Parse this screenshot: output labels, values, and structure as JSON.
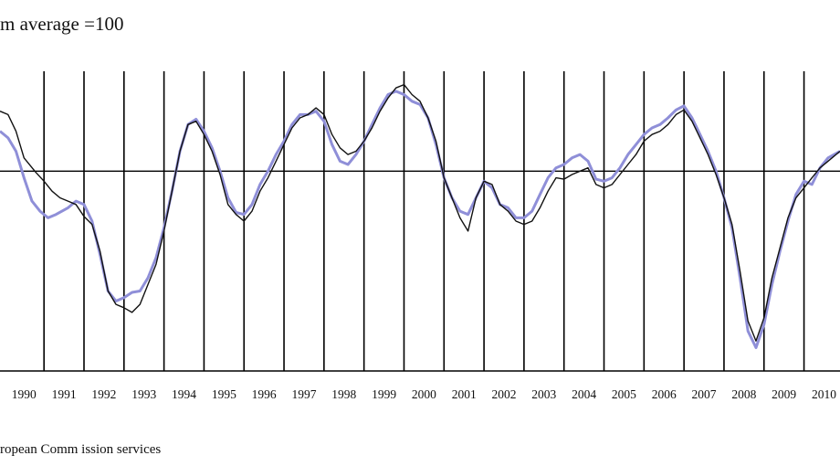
{
  "subtitle": "m average =100",
  "source": "ropean  Comm ission services",
  "colors": {
    "series_black": "#111111",
    "series_blue": "#8f8fd8",
    "axis": "#000000"
  },
  "chart_data": {
    "type": "line",
    "subtitle": "m average =100",
    "xlabel": "",
    "ylabel": "",
    "x_tick_labels": [
      "1990",
      "1991",
      "1992",
      "1993",
      "1994",
      "1995",
      "1996",
      "1997",
      "1998",
      "1999",
      "2000",
      "2001",
      "2002",
      "2003",
      "2004",
      "2005",
      "2006",
      "2007",
      "2008",
      "2009",
      "2010"
    ],
    "xlim": [
      1989.9,
      2010.9
    ],
    "ylim": [
      70,
      115
    ],
    "reference_line": 100,
    "grid": {
      "vertical_year_lines": true,
      "horizontal": false
    },
    "legend": "none",
    "series": [
      {
        "color": "#111111",
        "points": [
          [
            1989.9,
            109
          ],
          [
            1990.1,
            108.5
          ],
          [
            1990.3,
            106
          ],
          [
            1990.5,
            102
          ],
          [
            1990.8,
            99.8
          ],
          [
            1991.0,
            98.5
          ],
          [
            1991.2,
            97
          ],
          [
            1991.4,
            96
          ],
          [
            1991.6,
            95.5
          ],
          [
            1991.8,
            95
          ],
          [
            1992.0,
            93.2
          ],
          [
            1992.2,
            92
          ],
          [
            1992.4,
            88
          ],
          [
            1992.6,
            82
          ],
          [
            1992.8,
            80
          ],
          [
            1993.0,
            79.5
          ],
          [
            1993.2,
            78.8
          ],
          [
            1993.4,
            80
          ],
          [
            1993.6,
            83
          ],
          [
            1993.8,
            86
          ],
          [
            1994.0,
            91
          ],
          [
            1994.2,
            97
          ],
          [
            1994.4,
            103
          ],
          [
            1994.6,
            107
          ],
          [
            1994.8,
            107.5
          ],
          [
            1995.0,
            105.5
          ],
          [
            1995.2,
            103
          ],
          [
            1995.4,
            99.5
          ],
          [
            1995.6,
            95
          ],
          [
            1995.8,
            93.5
          ],
          [
            1996.0,
            92.5
          ],
          [
            1996.2,
            94
          ],
          [
            1996.4,
            97
          ],
          [
            1996.6,
            99
          ],
          [
            1996.8,
            101.5
          ],
          [
            1997.0,
            104
          ],
          [
            1997.2,
            106.5
          ],
          [
            1997.4,
            108
          ],
          [
            1997.6,
            108.5
          ],
          [
            1997.8,
            109.5
          ],
          [
            1998.0,
            108.5
          ],
          [
            1998.2,
            105.5
          ],
          [
            1998.4,
            103.5
          ],
          [
            1998.6,
            102.5
          ],
          [
            1998.8,
            103
          ],
          [
            1999.0,
            104.5
          ],
          [
            1999.2,
            106.5
          ],
          [
            1999.4,
            109
          ],
          [
            1999.6,
            111
          ],
          [
            1999.8,
            112.5
          ],
          [
            2000.0,
            113
          ],
          [
            2000.2,
            111.5
          ],
          [
            2000.4,
            110.5
          ],
          [
            2000.6,
            108
          ],
          [
            2000.8,
            104.5
          ],
          [
            2001.0,
            99
          ],
          [
            2001.2,
            96
          ],
          [
            2001.4,
            93
          ],
          [
            2001.6,
            91
          ],
          [
            2001.8,
            96
          ],
          [
            2002.0,
            98.5
          ],
          [
            2002.2,
            98
          ],
          [
            2002.4,
            95
          ],
          [
            2002.6,
            94
          ],
          [
            2002.8,
            92.5
          ],
          [
            2003.0,
            92
          ],
          [
            2003.2,
            92.5
          ],
          [
            2003.4,
            94.5
          ],
          [
            2003.6,
            97
          ],
          [
            2003.8,
            99
          ],
          [
            2004.0,
            98.8
          ],
          [
            2004.2,
            99.5
          ],
          [
            2004.4,
            100
          ],
          [
            2004.6,
            100.5
          ],
          [
            2004.8,
            98
          ],
          [
            2005.0,
            97.5
          ],
          [
            2005.2,
            98
          ],
          [
            2005.4,
            99.5
          ],
          [
            2005.6,
            101
          ],
          [
            2005.8,
            102.5
          ],
          [
            2006.0,
            104.5
          ],
          [
            2006.2,
            105.5
          ],
          [
            2006.4,
            106
          ],
          [
            2006.6,
            107
          ],
          [
            2006.8,
            108.5
          ],
          [
            2007.0,
            109.2
          ],
          [
            2007.2,
            107.5
          ],
          [
            2007.4,
            105
          ],
          [
            2007.6,
            102.5
          ],
          [
            2007.8,
            99.5
          ],
          [
            2008.0,
            96
          ],
          [
            2008.2,
            92
          ],
          [
            2008.4,
            85
          ],
          [
            2008.6,
            77.5
          ],
          [
            2008.8,
            74.5
          ],
          [
            2009.0,
            78
          ],
          [
            2009.2,
            84
          ],
          [
            2009.4,
            88.5
          ],
          [
            2009.6,
            93
          ],
          [
            2009.8,
            96
          ],
          [
            2010.0,
            97.5
          ],
          [
            2010.2,
            99
          ],
          [
            2010.4,
            100.5
          ],
          [
            2010.6,
            101.5
          ],
          [
            2010.9,
            103
          ]
        ]
      },
      {
        "color": "#8f8fd8",
        "points": [
          [
            1989.9,
            106
          ],
          [
            1990.1,
            105
          ],
          [
            1990.3,
            103
          ],
          [
            1990.5,
            99
          ],
          [
            1990.7,
            95.5
          ],
          [
            1990.9,
            94
          ],
          [
            1991.1,
            93
          ],
          [
            1991.3,
            93.5
          ],
          [
            1991.6,
            94.5
          ],
          [
            1991.8,
            95.5
          ],
          [
            1992.0,
            95
          ],
          [
            1992.2,
            92.5
          ],
          [
            1992.4,
            87.5
          ],
          [
            1992.6,
            82
          ],
          [
            1992.8,
            80.5
          ],
          [
            1993.0,
            81
          ],
          [
            1993.2,
            81.8
          ],
          [
            1993.4,
            82
          ],
          [
            1993.6,
            84
          ],
          [
            1993.8,
            87
          ],
          [
            1994.0,
            91.5
          ],
          [
            1994.2,
            97
          ],
          [
            1994.4,
            103
          ],
          [
            1994.6,
            107
          ],
          [
            1994.8,
            107.8
          ],
          [
            1995.0,
            106
          ],
          [
            1995.2,
            103.5
          ],
          [
            1995.4,
            100
          ],
          [
            1995.6,
            96
          ],
          [
            1995.8,
            93.8
          ],
          [
            1996.0,
            93.5
          ],
          [
            1996.2,
            95
          ],
          [
            1996.4,
            98
          ],
          [
            1996.6,
            100
          ],
          [
            1996.8,
            102.5
          ],
          [
            1997.0,
            104.5
          ],
          [
            1997.2,
            107
          ],
          [
            1997.4,
            108.5
          ],
          [
            1997.6,
            108.5
          ],
          [
            1997.8,
            109
          ],
          [
            1998.0,
            107.5
          ],
          [
            1998.2,
            104
          ],
          [
            1998.4,
            101.5
          ],
          [
            1998.6,
            101
          ],
          [
            1998.8,
            102.5
          ],
          [
            1999.0,
            104.5
          ],
          [
            1999.2,
            107
          ],
          [
            1999.4,
            109.5
          ],
          [
            1999.6,
            111.5
          ],
          [
            1999.8,
            112
          ],
          [
            2000.0,
            111.5
          ],
          [
            2000.2,
            110.5
          ],
          [
            2000.4,
            110
          ],
          [
            2000.6,
            108
          ],
          [
            2000.8,
            104
          ],
          [
            2001.0,
            99
          ],
          [
            2001.2,
            96
          ],
          [
            2001.4,
            94
          ],
          [
            2001.6,
            93.5
          ],
          [
            2001.8,
            96
          ],
          [
            2002.0,
            98.5
          ],
          [
            2002.2,
            97.5
          ],
          [
            2002.4,
            95
          ],
          [
            2002.6,
            94.5
          ],
          [
            2002.8,
            93
          ],
          [
            2003.0,
            93
          ],
          [
            2003.2,
            94
          ],
          [
            2003.4,
            96.5
          ],
          [
            2003.6,
            99
          ],
          [
            2003.8,
            100.5
          ],
          [
            2004.0,
            101
          ],
          [
            2004.2,
            102
          ],
          [
            2004.4,
            102.5
          ],
          [
            2004.6,
            101.5
          ],
          [
            2004.8,
            98.8
          ],
          [
            2005.0,
            98.5
          ],
          [
            2005.2,
            99
          ],
          [
            2005.4,
            100.5
          ],
          [
            2005.6,
            102.5
          ],
          [
            2005.8,
            104
          ],
          [
            2006.0,
            105.5
          ],
          [
            2006.2,
            106.5
          ],
          [
            2006.4,
            107
          ],
          [
            2006.6,
            108
          ],
          [
            2006.8,
            109.2
          ],
          [
            2007.0,
            109.8
          ],
          [
            2007.2,
            108
          ],
          [
            2007.4,
            105.5
          ],
          [
            2007.6,
            103
          ],
          [
            2007.8,
            100
          ],
          [
            2008.0,
            96
          ],
          [
            2008.2,
            91.5
          ],
          [
            2008.4,
            84
          ],
          [
            2008.6,
            76
          ],
          [
            2008.8,
            73.5
          ],
          [
            2009.0,
            77
          ],
          [
            2009.2,
            83
          ],
          [
            2009.4,
            88
          ],
          [
            2009.6,
            92.5
          ],
          [
            2009.8,
            96.5
          ],
          [
            2010.0,
            98.5
          ],
          [
            2010.2,
            98
          ],
          [
            2010.4,
            100.5
          ],
          [
            2010.6,
            102
          ],
          [
            2010.9,
            103
          ]
        ]
      }
    ]
  }
}
